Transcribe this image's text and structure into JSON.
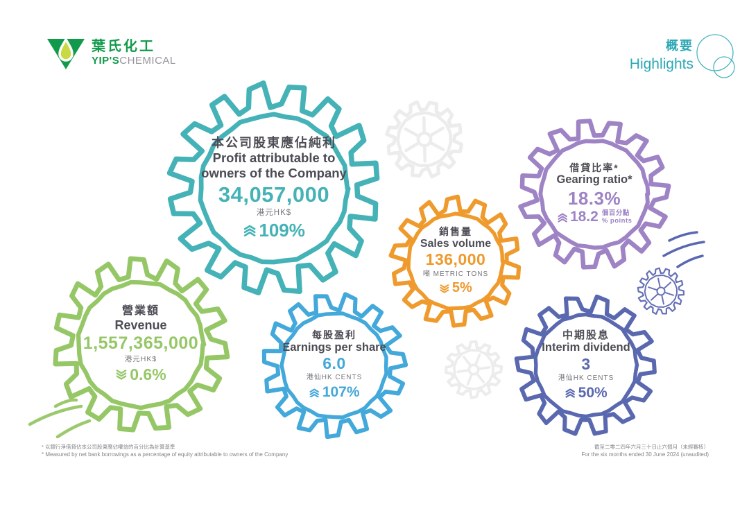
{
  "brand": {
    "zh": "葉氏化工",
    "en_bold": "YIP'S",
    "en_light": "CHEMICAL"
  },
  "header": {
    "title_zh": "概要",
    "title_en": "Highlights"
  },
  "metrics": [
    {
      "id": "profit",
      "title_zh": "本公司股東應佔純利",
      "title_en": "Profit attributable to owners of the Company",
      "value": "34,057,000",
      "unit": "港元HK$",
      "change": "109%",
      "direction": "up",
      "color": "#44b2b6"
    },
    {
      "id": "revenue",
      "title_zh": "營業額",
      "title_en": "Revenue",
      "value": "1,557,365,000",
      "unit": "港元HK$",
      "change": "0.6%",
      "direction": "down",
      "color": "#96c767"
    },
    {
      "id": "eps",
      "title_zh": "每股盈利",
      "title_en": "Earnings per share",
      "value": "6.0",
      "unit": "港仙HK CENTS",
      "change": "107%",
      "direction": "up",
      "color": "#43a8da"
    },
    {
      "id": "sales",
      "title_zh": "銷售量",
      "title_en": "Sales volume",
      "value": "136,000",
      "unit": "噸 METRIC TONS",
      "change": "5%",
      "direction": "down",
      "color": "#ef9a2d"
    },
    {
      "id": "gearing",
      "title_zh": "借貸比率*",
      "title_en": "Gearing ratio*",
      "value": "18.3%",
      "change": "18.2",
      "change_suffix_zh": "個百分點",
      "change_suffix_en": "% points",
      "direction": "up",
      "color": "#9e83c5"
    },
    {
      "id": "dividend",
      "title_zh": "中期股息",
      "title_en": "Interim dividend",
      "value": "3",
      "unit": "港仙HK CENTS",
      "change": "50%",
      "direction": "up",
      "color": "#5a68b0"
    }
  ],
  "footnotes": {
    "left_zh": "* 以銀行淨借貸佔本公司股東應佔權益的百分比為計算基準",
    "left_en": "* Measured by net bank borrowings as a percentage of equity attributable to owners of the Company",
    "right_zh": "截至二零二四年六月三十日止六個月（未經審核）",
    "right_en": "For the six months ended 30 June 2024 (unaudited)"
  },
  "colors": {
    "teal": "#44b2b6",
    "green": "#96c767",
    "blue": "#43a8da",
    "orange": "#ef9a2d",
    "purple": "#9e83c5",
    "indigo": "#5a68b0",
    "heading": "#4c4c55",
    "subtext": "#75757c",
    "highlight_teal": "#2ba7b6",
    "logo_green": "#129a4c"
  }
}
